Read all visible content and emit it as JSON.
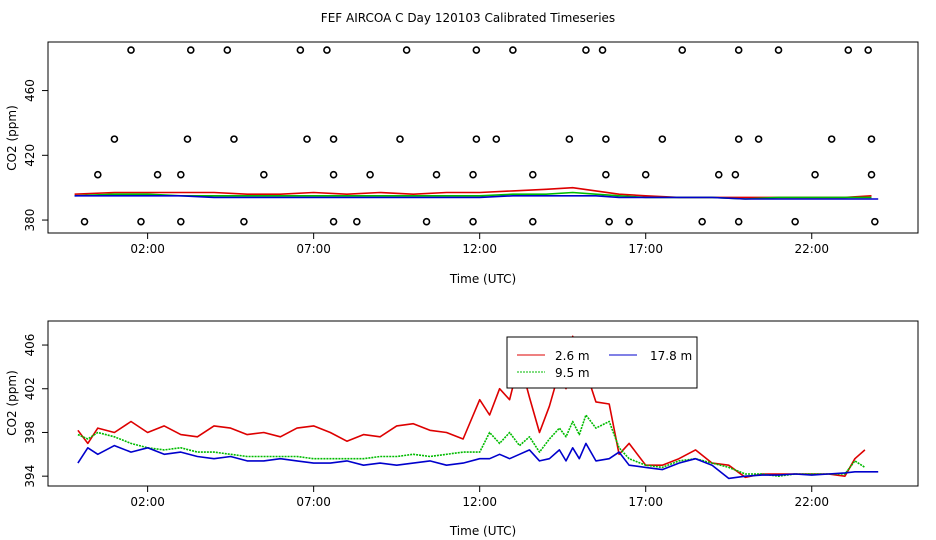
{
  "chart_data": {
    "title": "FEF AIRCOA C  Day 120103  Calibrated Timeseries",
    "panels": [
      {
        "type": "scatter+line",
        "ylabel": "CO2 (ppm)",
        "xlabel": "Time (UTC)",
        "xlim": [
          -1.0,
          25.2
        ],
        "ylim": [
          372,
          490
        ],
        "x_ticks": [
          {
            "v": 2,
            "label": "02:00"
          },
          {
            "v": 7,
            "label": "07:00"
          },
          {
            "v": 12,
            "label": "12:00"
          },
          {
            "v": 17,
            "label": "17:00"
          },
          {
            "v": 22,
            "label": "22:00"
          }
        ],
        "y_ticks": [
          {
            "v": 380,
            "label": "380"
          },
          {
            "v": 420,
            "label": "420"
          },
          {
            "v": 460,
            "label": "460"
          }
        ],
        "calibration_points": [
          [
            1.5,
            485
          ],
          [
            3.3,
            485
          ],
          [
            4.4,
            485
          ],
          [
            6.6,
            485
          ],
          [
            7.4,
            485
          ],
          [
            9.8,
            485
          ],
          [
            11.9,
            485
          ],
          [
            13.0,
            485
          ],
          [
            15.2,
            485
          ],
          [
            15.7,
            485
          ],
          [
            18.1,
            485
          ],
          [
            19.8,
            485
          ],
          [
            21.0,
            485
          ],
          [
            23.1,
            485
          ],
          [
            23.7,
            485
          ],
          [
            1.0,
            430
          ],
          [
            3.2,
            430
          ],
          [
            4.6,
            430
          ],
          [
            6.8,
            430
          ],
          [
            7.6,
            430
          ],
          [
            9.6,
            430
          ],
          [
            11.9,
            430
          ],
          [
            12.5,
            430
          ],
          [
            14.7,
            430
          ],
          [
            15.8,
            430
          ],
          [
            17.5,
            430
          ],
          [
            19.8,
            430
          ],
          [
            20.4,
            430
          ],
          [
            22.6,
            430
          ],
          [
            23.8,
            430
          ],
          [
            0.5,
            408
          ],
          [
            2.3,
            408
          ],
          [
            3.0,
            408
          ],
          [
            5.5,
            408
          ],
          [
            7.6,
            408
          ],
          [
            8.7,
            408
          ],
          [
            10.7,
            408
          ],
          [
            11.8,
            408
          ],
          [
            13.6,
            408
          ],
          [
            15.8,
            408
          ],
          [
            17.0,
            408
          ],
          [
            19.2,
            408
          ],
          [
            19.7,
            408
          ],
          [
            22.1,
            408
          ],
          [
            23.8,
            408
          ],
          [
            0.1,
            379
          ],
          [
            1.8,
            379
          ],
          [
            3.0,
            379
          ],
          [
            4.9,
            379
          ],
          [
            7.6,
            379
          ],
          [
            8.3,
            379
          ],
          [
            10.4,
            379
          ],
          [
            11.8,
            379
          ],
          [
            13.6,
            379
          ],
          [
            15.9,
            379
          ],
          [
            16.5,
            379
          ],
          [
            18.7,
            379
          ],
          [
            19.8,
            379
          ],
          [
            21.5,
            379
          ],
          [
            23.9,
            379
          ]
        ],
        "series": [
          {
            "name": "2.6 m",
            "color": "#dd0000",
            "x": [
              -0.2,
              1,
              2,
              3,
              4,
              5,
              6,
              7,
              8,
              9,
              10,
              11,
              12,
              13,
              14,
              14.8,
              15.5,
              16.2,
              17,
              18,
              19,
              20,
              21,
              22,
              23,
              23.8
            ],
            "values": [
              396,
              397,
              397,
              397,
              397,
              396,
              396,
              397,
              396,
              397,
              396,
              397,
              397,
              398,
              399,
              400,
              398,
              396,
              395,
              394,
              394,
              394,
              394,
              394,
              394,
              395
            ]
          },
          {
            "name": "9.5 m",
            "color": "#00bb00",
            "x": [
              -0.2,
              1,
              2,
              3,
              4,
              5,
              6,
              7,
              8,
              9,
              10,
              11,
              12,
              13,
              14,
              14.8,
              15.5,
              16.2,
              17,
              18,
              19,
              20,
              21,
              22,
              23,
              23.8
            ],
            "values": [
              395,
              396,
              396,
              395,
              395,
              395,
              395,
              395,
              395,
              395,
              395,
              395,
              395,
              396,
              396,
              397,
              396,
              395,
              394,
              394,
              394,
              393,
              394,
              394,
              394,
              394
            ]
          },
          {
            "name": "17.8 m",
            "color": "#0000cc",
            "x": [
              -0.2,
              1,
              2,
              3,
              4,
              5,
              6,
              7,
              8,
              9,
              10,
              11,
              12,
              13,
              14,
              14.8,
              15.5,
              16.2,
              17,
              18,
              19,
              20,
              21,
              22,
              23,
              24
            ],
            "values": [
              395,
              395,
              395,
              395,
              394,
              394,
              394,
              394,
              394,
              394,
              394,
              394,
              394,
              395,
              395,
              395,
              395,
              394,
              394,
              394,
              394,
              393,
              393,
              393,
              393,
              393
            ]
          }
        ]
      },
      {
        "type": "line",
        "ylabel": "CO2 (ppm)",
        "xlabel": "Time (UTC)",
        "xlim": [
          -1.0,
          25.2
        ],
        "ylim": [
          393.1,
          408.2
        ],
        "x_ticks": [
          {
            "v": 2,
            "label": "02:00"
          },
          {
            "v": 7,
            "label": "07:00"
          },
          {
            "v": 12,
            "label": "12:00"
          },
          {
            "v": 17,
            "label": "17:00"
          },
          {
            "v": 22,
            "label": "22:00"
          }
        ],
        "y_ticks": [
          {
            "v": 394,
            "label": "394"
          },
          {
            "v": 398,
            "label": "398"
          },
          {
            "v": 402,
            "label": "402"
          },
          {
            "v": 406,
            "label": "406"
          }
        ],
        "legend_position": "top-center",
        "series": [
          {
            "name": "2.6 m",
            "color": "#dd0000",
            "dash": "",
            "x": [
              -0.1,
              0.2,
              0.5,
              1,
              1.5,
              2,
              2.5,
              3,
              3.5,
              4,
              4.5,
              5,
              5.5,
              6,
              6.5,
              7,
              7.5,
              8,
              8.5,
              9,
              9.5,
              10,
              10.5,
              11,
              11.5,
              12,
              12.3,
              12.6,
              12.9,
              13.2,
              13.5,
              13.8,
              14.1,
              14.4,
              14.6,
              14.8,
              15.0,
              15.2,
              15.5,
              15.9,
              16.2,
              16.5,
              17,
              17.5,
              18,
              18.5,
              19,
              19.5,
              20,
              20.5,
              21,
              21.5,
              22,
              22.5,
              23,
              23.3,
              23.6
            ],
            "values": [
              398.2,
              397.0,
              398.4,
              398.0,
              399.0,
              398.0,
              398.6,
              397.8,
              397.6,
              398.6,
              398.4,
              397.8,
              398.0,
              397.6,
              398.4,
              398.6,
              398.0,
              397.2,
              397.8,
              397.6,
              398.6,
              398.8,
              398.2,
              398.0,
              397.4,
              401.0,
              399.6,
              402.0,
              401.0,
              404.6,
              401.2,
              398.0,
              400.4,
              403.6,
              402.0,
              406.8,
              402.6,
              403.6,
              400.8,
              400.6,
              396.0,
              397.0,
              395.0,
              395.0,
              395.6,
              396.4,
              395.2,
              395.0,
              393.9,
              394.2,
              394.2,
              394.2,
              394.2,
              394.2,
              394.0,
              395.6,
              396.4
            ]
          },
          {
            "name": "9.5 m",
            "color": "#00bb00",
            "dash": "2,1",
            "x": [
              -0.1,
              0.2,
              0.5,
              1,
              1.5,
              2,
              2.5,
              3,
              3.5,
              4,
              4.5,
              5,
              5.5,
              6,
              6.5,
              7,
              7.5,
              8,
              8.5,
              9,
              9.5,
              10,
              10.5,
              11,
              11.5,
              12,
              12.3,
              12.6,
              12.9,
              13.2,
              13.5,
              13.8,
              14.1,
              14.4,
              14.6,
              14.8,
              15.0,
              15.2,
              15.5,
              15.9,
              16.2,
              16.5,
              17,
              17.5,
              18,
              18.5,
              19,
              19.5,
              20,
              20.5,
              21,
              21.5,
              22,
              22.5,
              23,
              23.3,
              23.6
            ],
            "values": [
              397.8,
              397.4,
              398.0,
              397.6,
              397.0,
              396.6,
              396.4,
              396.6,
              396.2,
              396.2,
              396.0,
              395.8,
              395.8,
              395.8,
              395.8,
              395.6,
              395.6,
              395.6,
              395.6,
              395.8,
              395.8,
              396.0,
              395.8,
              396.0,
              396.2,
              396.2,
              398.0,
              397.0,
              398.0,
              396.8,
              397.6,
              396.2,
              397.4,
              398.4,
              397.6,
              399.0,
              397.8,
              399.6,
              398.4,
              399.0,
              396.6,
              395.6,
              395.0,
              394.8,
              395.4,
              395.6,
              395.2,
              394.8,
              394.2,
              394.2,
              394.0,
              394.2,
              394.2,
              394.2,
              394.2,
              395.4,
              394.8
            ]
          },
          {
            "name": "17.8 m",
            "color": "#0000cc",
            "dash": "",
            "x": [
              -0.1,
              0.2,
              0.5,
              1,
              1.5,
              2,
              2.5,
              3,
              3.5,
              4,
              4.5,
              5,
              5.5,
              6,
              6.5,
              7,
              7.5,
              8,
              8.5,
              9,
              9.5,
              10,
              10.5,
              11,
              11.5,
              12,
              12.3,
              12.6,
              12.9,
              13.2,
              13.5,
              13.8,
              14.1,
              14.4,
              14.6,
              14.8,
              15.0,
              15.2,
              15.5,
              15.9,
              16.2,
              16.5,
              17,
              17.5,
              18,
              18.5,
              19,
              19.5,
              20,
              20.5,
              21,
              21.5,
              22,
              22.5,
              23,
              23.3,
              23.6,
              24
            ],
            "values": [
              395.2,
              396.6,
              396.0,
              396.8,
              396.2,
              396.6,
              396.0,
              396.2,
              395.8,
              395.6,
              395.8,
              395.4,
              395.4,
              395.6,
              395.4,
              395.2,
              395.2,
              395.4,
              395.0,
              395.2,
              395.0,
              395.2,
              395.4,
              395.0,
              395.2,
              395.6,
              395.6,
              396.0,
              395.6,
              396.0,
              396.4,
              395.4,
              395.6,
              396.4,
              395.4,
              396.6,
              395.6,
              397.0,
              395.4,
              395.6,
              396.2,
              395.0,
              394.8,
              394.6,
              395.2,
              395.6,
              395.0,
              393.8,
              394.0,
              394.1,
              394.1,
              394.2,
              394.1,
              394.2,
              394.3,
              394.4,
              394.4,
              394.4
            ]
          }
        ]
      }
    ]
  }
}
